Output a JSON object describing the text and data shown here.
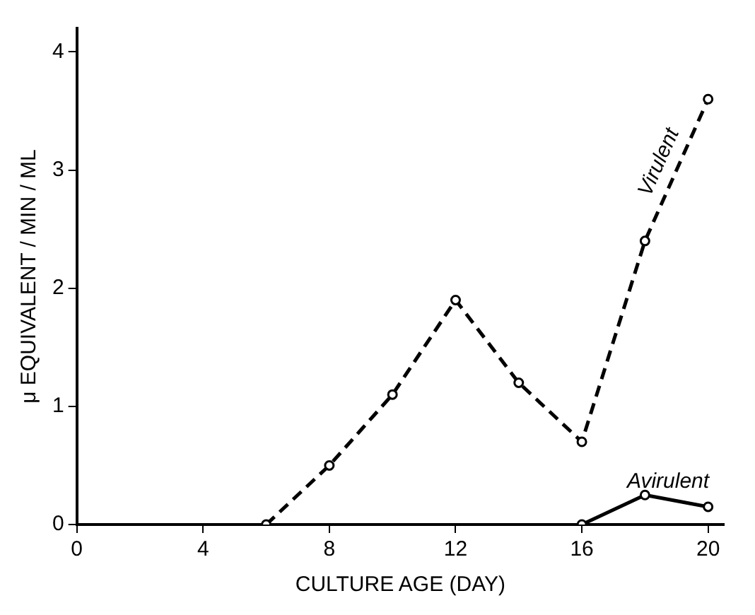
{
  "chart_data": {
    "type": "line",
    "xlabel": "CULTURE AGE (DAY)",
    "ylabel": "μ EQUIVALENT / MIN / ML",
    "xlim": [
      0,
      20.5
    ],
    "xticks": [
      0,
      4,
      8,
      12,
      16,
      20
    ],
    "ylim": [
      0,
      4.2
    ],
    "yticks": [
      0,
      1,
      2,
      3,
      4
    ],
    "grid": false,
    "legend": false,
    "marker": "circle",
    "series": [
      {
        "name": "Virulent",
        "color": "#000000",
        "line_style": "dashed",
        "x": [
          6,
          8,
          10,
          12,
          14,
          16,
          18,
          20
        ],
        "values": [
          0,
          0.5,
          1.1,
          1.9,
          1.2,
          0.7,
          2.4,
          3.6
        ]
      },
      {
        "name": "Avirulent",
        "color": "#000000",
        "line_style": "solid",
        "x": [
          16,
          18,
          20
        ],
        "values": [
          0,
          0.25,
          0.15
        ]
      }
    ]
  }
}
